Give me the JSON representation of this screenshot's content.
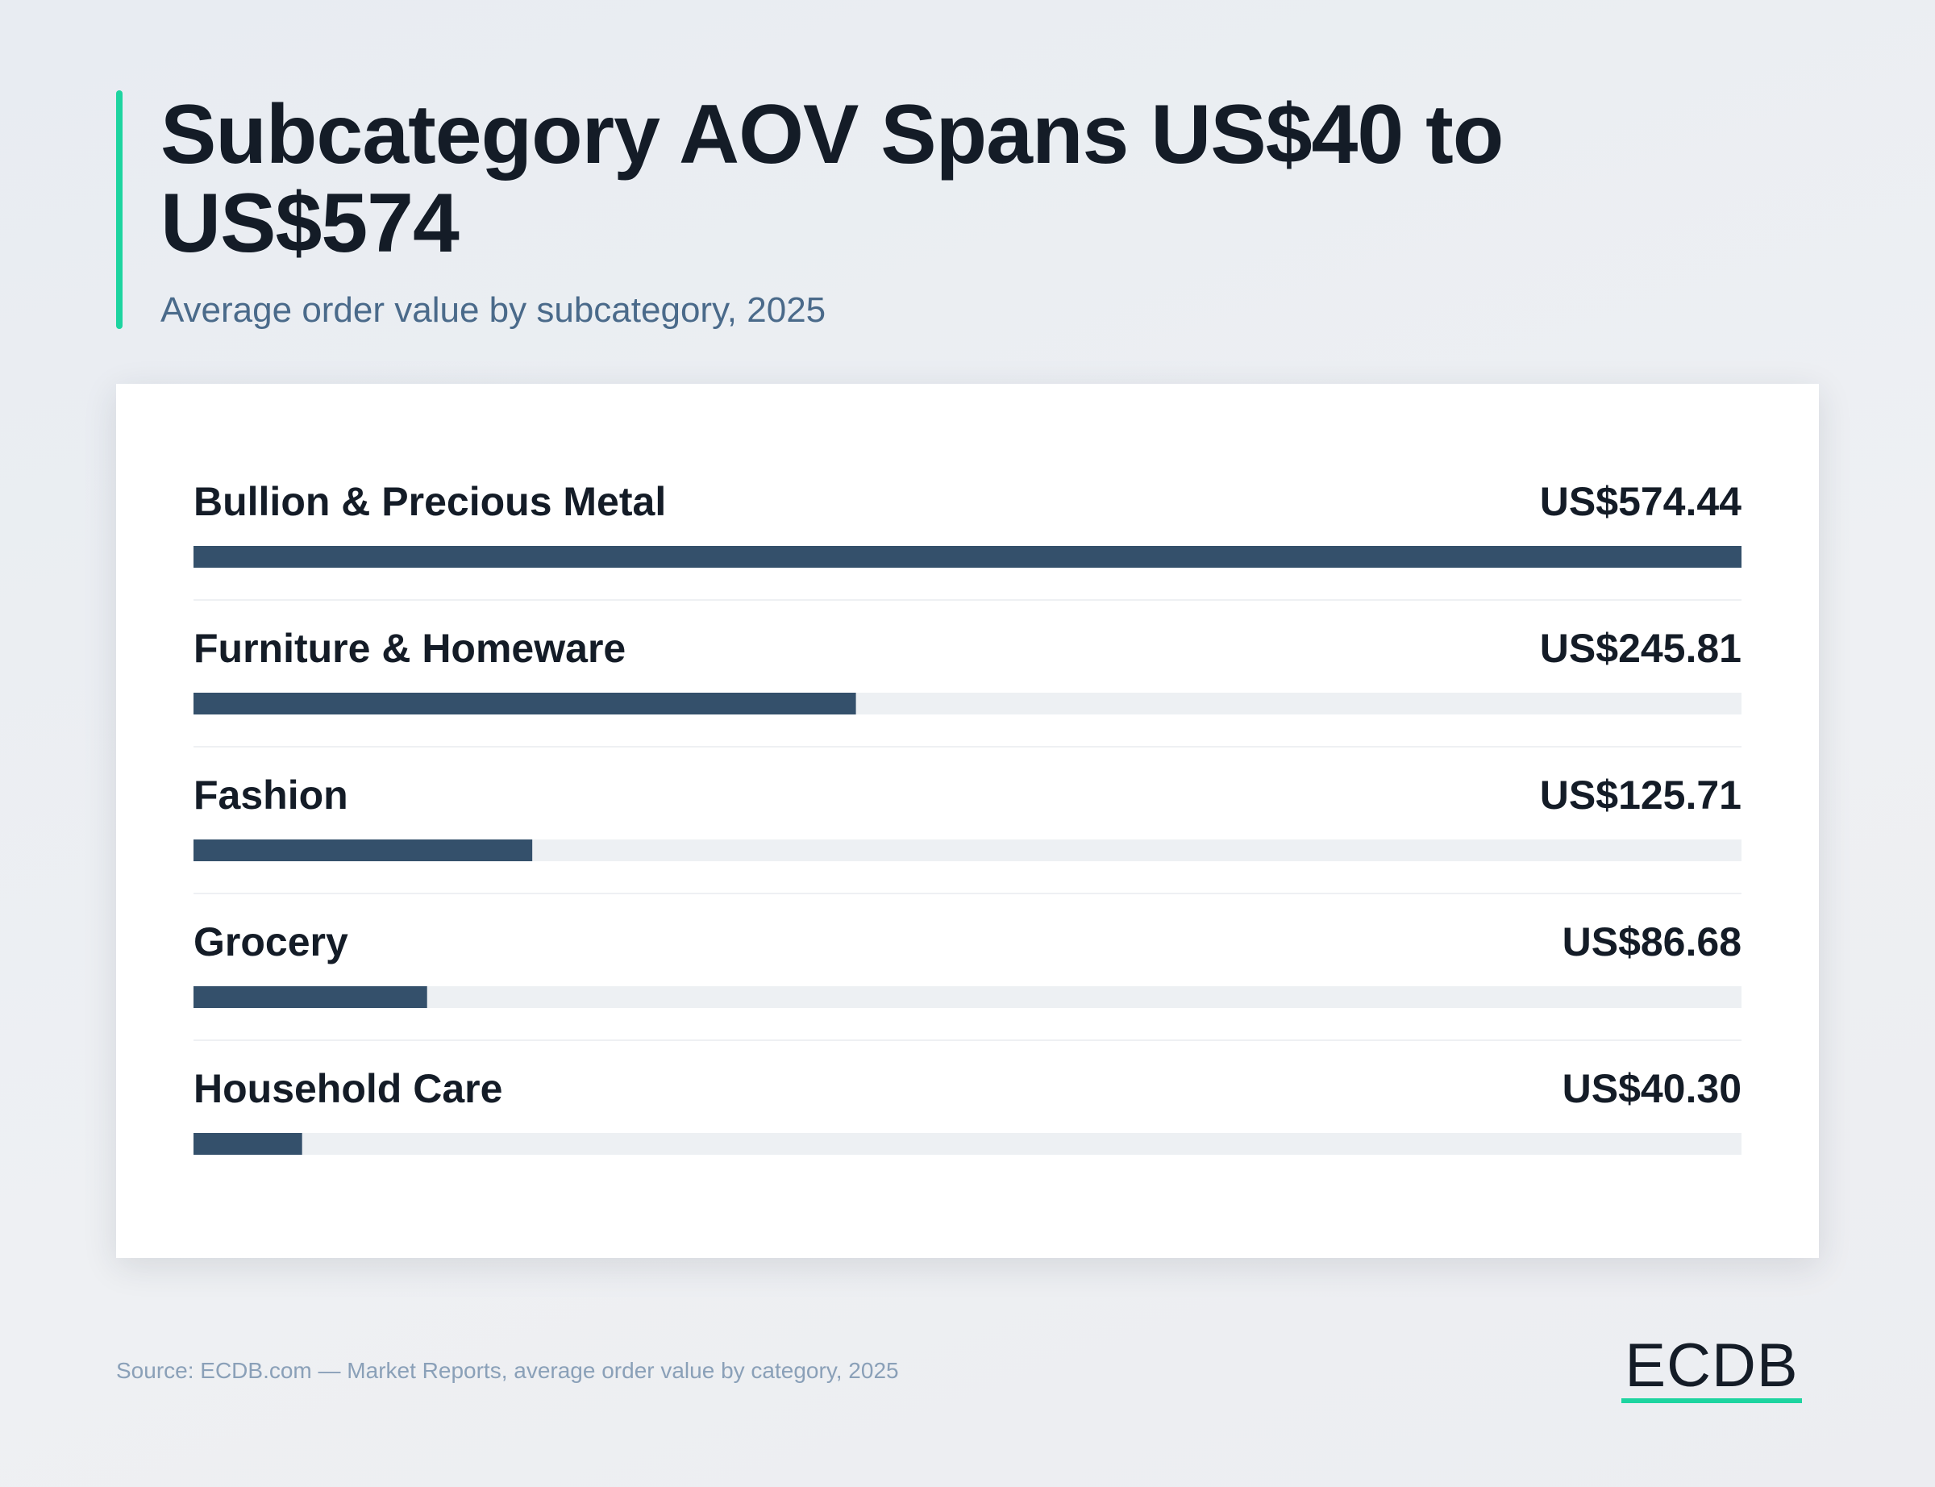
{
  "chart_data": {
    "type": "bar",
    "orientation": "horizontal",
    "title": "Subcategory AOV Spans US$40 to US$574",
    "subtitle": "Average order value by subcategory, 2025",
    "categories": [
      "Bullion & Precious Metal",
      "Furniture & Homeware",
      "Fashion",
      "Grocery",
      "Household Care"
    ],
    "values": [
      574.44,
      245.81,
      125.71,
      86.68,
      40.3
    ],
    "value_labels": [
      "US$574.44",
      "US$245.81",
      "US$125.71",
      "US$86.68",
      "US$40.30"
    ],
    "color": "#34506b",
    "source": "Source: ECDB.com — Market Reports, average order value by category, 2025",
    "logo": "ECDB"
  }
}
